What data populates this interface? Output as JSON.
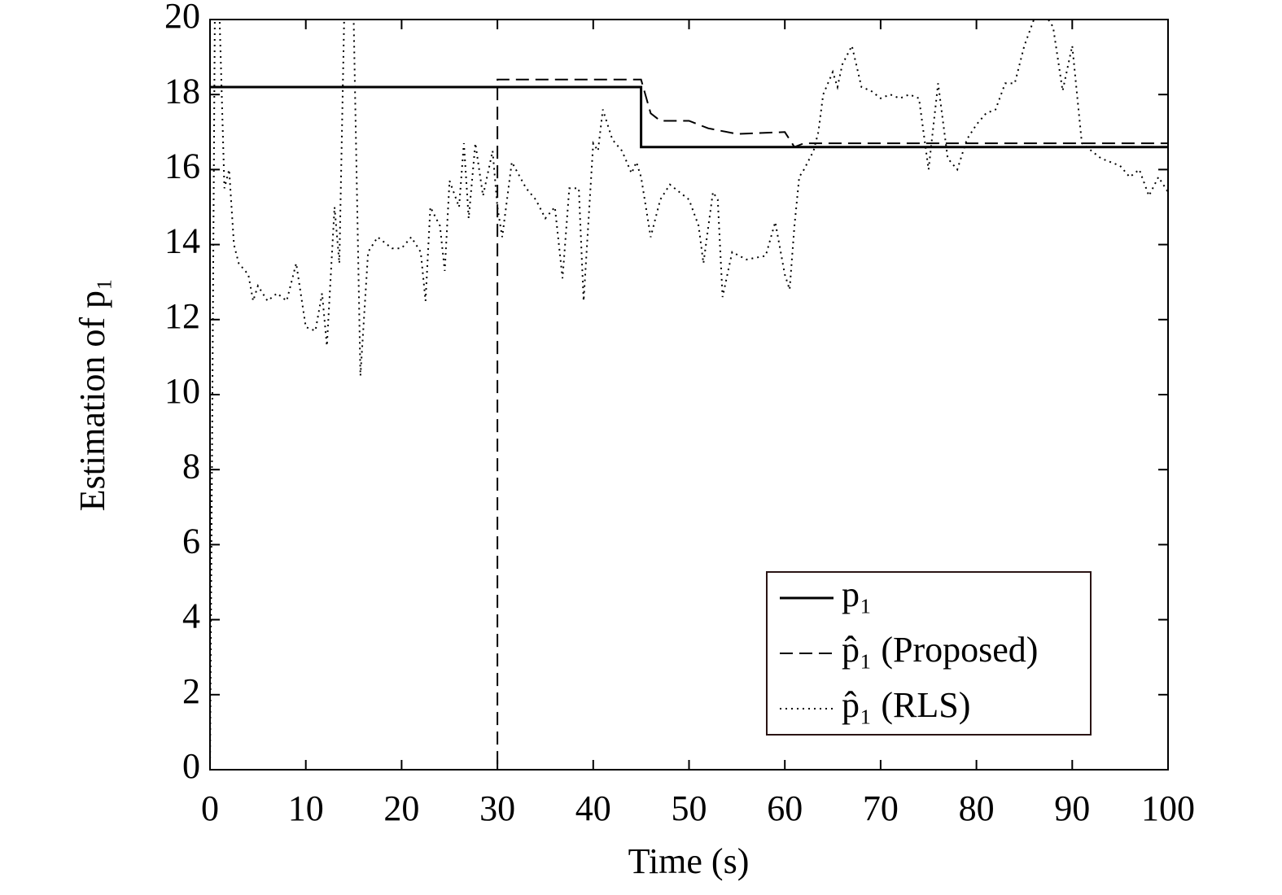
{
  "chart_data": {
    "type": "line",
    "xlabel": "Time (s)",
    "ylabel": "Estimation of p₁",
    "xlim": [
      0,
      100
    ],
    "xticks": [
      0,
      10,
      20,
      30,
      40,
      50,
      60,
      70,
      80,
      90,
      100
    ],
    "ylim": [
      0,
      20
    ],
    "yticks": [
      0,
      2,
      4,
      6,
      8,
      10,
      12,
      14,
      16,
      18,
      20
    ],
    "legend": "lower right",
    "series": [
      {
        "name": "p₁",
        "color": "#000000",
        "dash": "solid",
        "x": [
          0,
          45,
          45,
          100
        ],
        "values": [
          18.2,
          18.2,
          16.6,
          16.6
        ]
      },
      {
        "name": "p̂₁ (Proposed)",
        "color": "#000000",
        "dash": "dashed",
        "x": [
          0,
          30,
          30,
          45,
          46,
          47,
          50,
          52,
          55,
          60,
          61,
          62,
          100
        ],
        "values": [
          0,
          0,
          18.4,
          18.4,
          17.5,
          17.3,
          17.3,
          17.1,
          16.95,
          17.0,
          16.6,
          16.7,
          16.7
        ]
      },
      {
        "name": "p̂₁ (RLS)",
        "color": "#000000",
        "dash": "dotted",
        "x": [
          0,
          0.5,
          1,
          1.5,
          2,
          2.5,
          3,
          4,
          4.5,
          5,
          6,
          7,
          8,
          9,
          10,
          11,
          11.7,
          12.2,
          13,
          13.5,
          14,
          15,
          15.7,
          16.5,
          17.5,
          19,
          20,
          21,
          22,
          22.5,
          23,
          24,
          24.5,
          25,
          26,
          26.5,
          27,
          27.7,
          28.5,
          29.5,
          30,
          30.5,
          31.5,
          33,
          34,
          35,
          36,
          36.8,
          37.5,
          38.5,
          39,
          40,
          40.5,
          41,
          42,
          43,
          44,
          44.5,
          45,
          45.5,
          46,
          47,
          48,
          49,
          50,
          51,
          51.5,
          52.5,
          53,
          53.5,
          54.5,
          56,
          58,
          59,
          60,
          60.5,
          61,
          61.5,
          62,
          63,
          63.5,
          64,
          65,
          65.5,
          66,
          67,
          68,
          69,
          70,
          71,
          72,
          73,
          74,
          75,
          76,
          77,
          78,
          79,
          80,
          81,
          82,
          83,
          84,
          85,
          86,
          87.5,
          88,
          89,
          90,
          91,
          93,
          95,
          96,
          97,
          98,
          99,
          100
        ],
        "values": [
          0,
          20,
          20,
          15.5,
          16,
          14,
          13.5,
          13.2,
          12.5,
          12.9,
          12.5,
          12.7,
          12.5,
          13.5,
          11.8,
          11.7,
          12.7,
          11.3,
          15,
          13.5,
          20,
          20,
          10.5,
          13.8,
          14.2,
          13.9,
          13.9,
          14.2,
          13.8,
          12.5,
          15,
          14.5,
          13.3,
          15.7,
          15,
          16.7,
          14.7,
          16.7,
          15.3,
          16.5,
          15,
          14.2,
          16.2,
          15.5,
          15.2,
          14.7,
          15,
          13.1,
          15.5,
          15.5,
          12.5,
          16.7,
          16.5,
          17.6,
          16.8,
          16.5,
          15.9,
          16.2,
          15.8,
          15,
          14.2,
          15.2,
          15.6,
          15.4,
          15.2,
          14.5,
          13.5,
          15.4,
          15.2,
          12.6,
          13.8,
          13.6,
          13.7,
          14.6,
          13.2,
          12.8,
          14.5,
          15.8,
          16,
          16.5,
          17,
          18,
          18.6,
          18.2,
          18.8,
          19.3,
          18.2,
          18.1,
          17.9,
          18,
          17.9,
          18,
          17.9,
          16,
          18.3,
          16.3,
          16,
          16.8,
          17.2,
          17.5,
          17.6,
          18.3,
          18.3,
          19.3,
          20,
          20,
          19.8,
          18.1,
          19.3,
          16.7,
          16.3,
          16.1,
          15.8,
          16,
          15.3,
          15.8,
          15.4
        ]
      }
    ]
  }
}
